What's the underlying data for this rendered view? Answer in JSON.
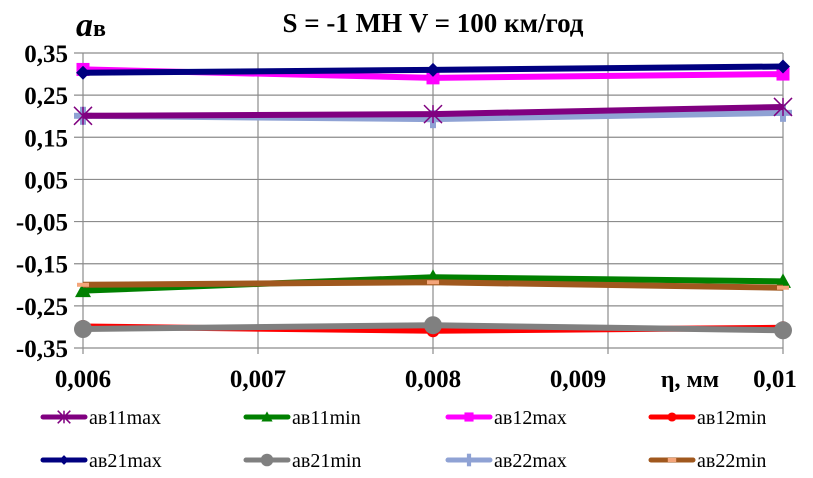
{
  "chart_data": {
    "type": "line",
    "title": "S = -1 МН  V = 100 км/год",
    "ylabel": "ав",
    "ylabel_main": "а",
    "ylabel_sub": "в",
    "xlabel": "η, мм",
    "x": [
      0.006,
      0.008,
      0.01
    ],
    "xlim": [
      0.006,
      0.01
    ],
    "ylim": [
      -0.35,
      0.35
    ],
    "x_ticks": [
      0.006,
      0.007,
      0.008,
      0.009,
      0.01
    ],
    "x_tick_labels": [
      "0,006",
      "0,007",
      "0,008",
      "0,009",
      "0,01"
    ],
    "y_ticks": [
      0.35,
      0.25,
      0.15,
      0.05,
      -0.05,
      -0.15,
      -0.25,
      -0.35
    ],
    "y_tick_labels": [
      "0,35",
      "0,25",
      "0,15",
      "0,05",
      "-0,05",
      "-0,15",
      "-0,25",
      "-0,35"
    ],
    "grid": true,
    "legend_position": "bottom",
    "series": [
      {
        "name": "ав11max",
        "color": "#800080",
        "marker": "star",
        "values": [
          0.201,
          0.205,
          0.222
        ]
      },
      {
        "name": "ав11min",
        "color": "#008000",
        "marker": "triangle",
        "values": [
          -0.214,
          -0.182,
          -0.192
        ]
      },
      {
        "name": "ав12max",
        "color": "#ff00ff",
        "marker": "square",
        "values": [
          0.311,
          0.291,
          0.3
        ]
      },
      {
        "name": "ав12min",
        "color": "#ff0000",
        "marker": "circle",
        "values": [
          -0.299,
          -0.309,
          -0.302
        ]
      },
      {
        "name": "ав21max",
        "color": "#000080",
        "marker": "diamond",
        "values": [
          0.303,
          0.31,
          0.318
        ]
      },
      {
        "name": "ав21min",
        "color": "#808080",
        "marker": "circle",
        "values": [
          -0.305,
          -0.296,
          -0.308
        ]
      },
      {
        "name": "ав22max",
        "color": "#8fa2d4",
        "marker": "plus",
        "values": [
          0.201,
          0.193,
          0.208
        ]
      },
      {
        "name": "ав22min",
        "color": "#a0581e",
        "marker": "dash",
        "values": [
          -0.2,
          -0.194,
          -0.207
        ]
      }
    ]
  }
}
